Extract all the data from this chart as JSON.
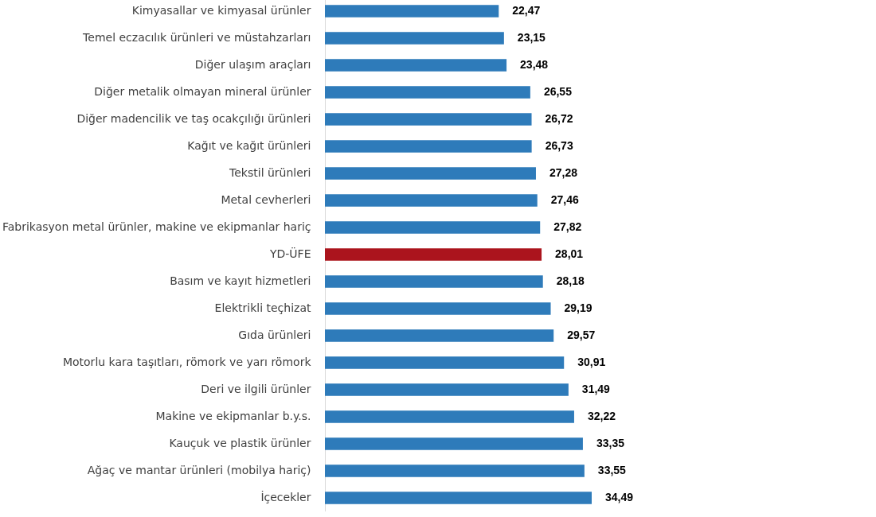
{
  "chart_data": {
    "type": "bar",
    "orientation": "horizontal",
    "categories": [
      "Kimyasallar ve kimyasal ürünler",
      "Temel eczacılık ürünleri ve müstahzarları",
      "Diğer ulaşım araçları",
      "Diğer metalik olmayan mineral ürünler",
      "Diğer madencilik ve taş ocakçılığı ürünleri",
      "Kağıt ve kağıt ürünleri",
      "Tekstil ürünleri",
      "Metal cevherleri",
      "Fabrikasyon metal ürünler, makine ve ekipmanlar hariç",
      "YD-ÜFE",
      "Basım ve kayıt hizmetleri",
      "Elektrikli teçhizat",
      "Gıda ürünleri",
      "Motorlu kara taşıtları, römork ve yarı römork",
      "Deri ve ilgili ürünler",
      "Makine ve ekipmanlar b.y.s.",
      "Kauçuk ve plastik ürünler",
      "Ağaç ve mantar ürünleri (mobilya hariç)",
      "İçecekler"
    ],
    "values": [
      22.47,
      23.15,
      23.48,
      26.55,
      26.72,
      26.73,
      27.28,
      27.46,
      27.82,
      28.01,
      28.18,
      29.19,
      29.57,
      30.91,
      31.49,
      32.22,
      33.35,
      33.55,
      34.49
    ],
    "value_labels": [
      "22,47",
      "23,15",
      "23,48",
      "26,55",
      "26,72",
      "26,73",
      "27,28",
      "27,46",
      "27,82",
      "28,01",
      "28,18",
      "29,19",
      "29,57",
      "30,91",
      "31,49",
      "32,22",
      "33,35",
      "33,55",
      "34,49"
    ],
    "colors": [
      "#2e7bba",
      "#2e7bba",
      "#2e7bba",
      "#2e7bba",
      "#2e7bba",
      "#2e7bba",
      "#2e7bba",
      "#2e7bba",
      "#2e7bba",
      "#ab141d",
      "#2e7bba",
      "#2e7bba",
      "#2e7bba",
      "#2e7bba",
      "#2e7bba",
      "#2e7bba",
      "#2e7bba",
      "#2e7bba",
      "#2e7bba"
    ],
    "grid": false
  }
}
